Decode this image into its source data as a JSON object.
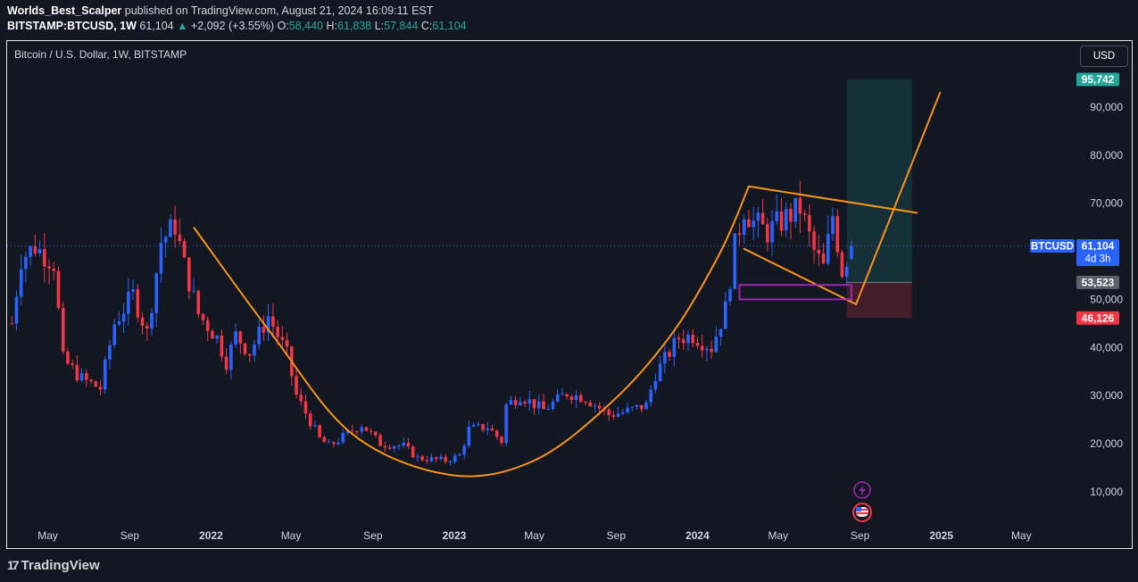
{
  "header": {
    "author": "Worlds_Best_Scalper",
    "published_text": "published on TradingView.com, August 21, 2024 16:09:11 EST",
    "symbol": "BITSTAMP:BTCUSD, 1W",
    "last": "61,104",
    "change": "+2,092 (+3.55%)",
    "o_label": "O:",
    "o": "58,440",
    "h_label": "H:",
    "h": "61,838",
    "l_label": "L:",
    "l": "57,844",
    "c_label": "C:",
    "c": "61,104"
  },
  "legend_title": "Bitcoin / U.S. Dollar, 1W, BITSTAMP",
  "currency": "USD",
  "branding": "TradingView",
  "colors": {
    "bull": "#2962ff",
    "bear": "#f23645",
    "pattern": "#f7931a",
    "target_zone": "#26a69a",
    "stop_zone": "#f23645",
    "box": "#9c27b0",
    "price_line": "#2962ff"
  },
  "chart_data": {
    "type": "candlestick",
    "title": "Bitcoin / U.S. Dollar, 1W, BITSTAMP",
    "x_axis": {
      "type": "date",
      "tick_labels": [
        "May",
        "Sep",
        "2022",
        "May",
        "Sep",
        "2023",
        "May",
        "Sep",
        "2024",
        "May",
        "Sep",
        "2025",
        "May"
      ],
      "tick_dates": [
        "2021-05-01",
        "2021-09-01",
        "2022-01-01",
        "2022-05-01",
        "2022-09-01",
        "2023-01-01",
        "2023-05-01",
        "2023-09-01",
        "2024-01-01",
        "2024-05-01",
        "2024-09-01",
        "2025-01-01",
        "2025-05-01"
      ],
      "range": [
        "2021-03-01",
        "2025-07-20"
      ]
    },
    "y_axis": {
      "tick_values": [
        10000,
        20000,
        30000,
        40000,
        50000,
        60000,
        70000,
        80000,
        90000
      ],
      "tick_labels": [
        "10,000",
        "20,000",
        "30,000",
        "40,000",
        "50,000",
        "",
        "70,000",
        "80,000",
        "90,000"
      ],
      "range": [
        2000,
        100000
      ]
    },
    "grid": false,
    "price_labels": [
      {
        "value": 95742,
        "text": "95,742",
        "kind": "target"
      },
      {
        "value": 61104,
        "text": "61,104",
        "subtext": "4d 3h",
        "symbol": "BTCUSD",
        "kind": "last"
      },
      {
        "value": 53523,
        "text": "53,523",
        "kind": "entry"
      },
      {
        "value": 46126,
        "text": "46,126",
        "kind": "stop"
      }
    ],
    "last_close": 61104,
    "anchors": [
      [
        "2021-03-08",
        45000
      ],
      [
        "2021-03-22",
        58500
      ],
      [
        "2021-04-12",
        61000
      ],
      [
        "2021-05-10",
        57500
      ],
      [
        "2021-05-24",
        37500
      ],
      [
        "2021-06-21",
        33500
      ],
      [
        "2021-07-19",
        31500
      ],
      [
        "2021-08-09",
        45000
      ],
      [
        "2021-09-06",
        51000
      ],
      [
        "2021-09-27",
        43000
      ],
      [
        "2021-10-18",
        62000
      ],
      [
        "2021-11-08",
        65500
      ],
      [
        "2021-11-22",
        57000
      ],
      [
        "2021-12-13",
        47000
      ],
      [
        "2022-01-10",
        42000
      ],
      [
        "2022-01-24",
        37000
      ],
      [
        "2022-02-07",
        42500
      ],
      [
        "2022-02-28",
        39000
      ],
      [
        "2022-03-28",
        46500
      ],
      [
        "2022-04-25",
        38500
      ],
      [
        "2022-05-09",
        30000
      ],
      [
        "2022-06-13",
        21000
      ],
      [
        "2022-06-27",
        19500
      ],
      [
        "2022-08-15",
        24000
      ],
      [
        "2022-09-12",
        20000
      ],
      [
        "2022-10-17",
        19500
      ],
      [
        "2022-11-07",
        17000
      ],
      [
        "2022-12-19",
        16500
      ],
      [
        "2023-01-09",
        17500
      ],
      [
        "2023-01-23",
        23000
      ],
      [
        "2023-02-20",
        23500
      ],
      [
        "2023-03-13",
        20500
      ],
      [
        "2023-03-20",
        28000
      ],
      [
        "2023-04-10",
        30000
      ],
      [
        "2023-05-15",
        27000
      ],
      [
        "2023-06-19",
        30500
      ],
      [
        "2023-07-17",
        29500
      ],
      [
        "2023-08-21",
        26000
      ],
      [
        "2023-09-11",
        26500
      ],
      [
        "2023-10-16",
        28000
      ],
      [
        "2023-10-30",
        34500
      ],
      [
        "2023-12-04",
        42000
      ],
      [
        "2023-12-25",
        42500
      ],
      [
        "2024-01-22",
        40000
      ],
      [
        "2024-02-12",
        48000
      ],
      [
        "2024-02-26",
        61000
      ],
      [
        "2024-03-11",
        69000
      ],
      [
        "2024-03-25",
        66000
      ],
      [
        "2024-04-15",
        64000
      ],
      [
        "2024-05-13",
        67000
      ],
      [
        "2024-06-03",
        69000
      ],
      [
        "2024-06-24",
        60000
      ],
      [
        "2024-07-08",
        56500
      ],
      [
        "2024-07-22",
        67500
      ],
      [
        "2024-08-05",
        56000
      ],
      [
        "2024-08-19",
        61104
      ]
    ],
    "drawings": {
      "cup_curve": [
        [
          "2021-12-06",
          65000
        ],
        [
          "2022-04-01",
          43000
        ],
        [
          "2022-08-01",
          22000
        ],
        [
          "2022-12-26",
          13500
        ],
        [
          "2023-05-01",
          16500
        ],
        [
          "2023-08-28",
          29000
        ],
        [
          "2023-11-27",
          43500
        ],
        [
          "2024-02-05",
          60000
        ],
        [
          "2024-03-18",
          73500
        ]
      ],
      "upper_trendline": [
        [
          "2024-03-18",
          73500
        ],
        [
          "2024-11-25",
          68000
        ]
      ],
      "lower_trendline": [
        [
          "2024-03-11",
          60500
        ],
        [
          "2024-08-26",
          49000
        ]
      ],
      "breakout_path": [
        [
          "2024-08-26",
          49000
        ],
        [
          "2024-12-30",
          93000
        ]
      ],
      "support_box": {
        "from": "2024-03-04",
        "to": "2024-08-19",
        "top": 53000,
        "bottom": 50000
      },
      "position": {
        "from": "2024-08-12",
        "to": "2024-11-18",
        "entry": 53523,
        "target": 95742,
        "stop": 46126
      }
    }
  }
}
